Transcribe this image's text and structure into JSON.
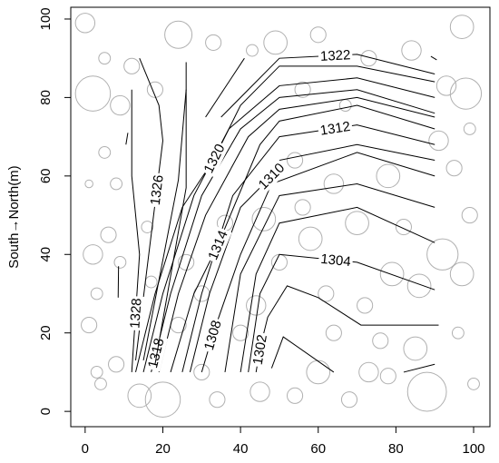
{
  "chart_data": {
    "type": "contour",
    "y_label": "South→North(m)",
    "xlim": [
      -3.7,
      104.2
    ],
    "ylim": [
      -3.9,
      103
    ],
    "xticks": [
      0,
      20,
      40,
      60,
      80,
      100
    ],
    "yticks": [
      0,
      20,
      40,
      60,
      80,
      100
    ],
    "line_color": "#000000",
    "circle_color": "#b0b0b0",
    "trees": {
      "x": [
        0,
        12,
        24,
        33,
        49,
        60,
        73,
        84,
        97,
        93,
        98,
        5,
        2,
        1,
        6,
        2,
        3,
        9,
        1,
        3,
        8,
        4,
        14,
        20,
        30,
        34,
        45,
        54,
        60,
        73,
        68,
        78,
        88,
        100,
        96,
        85,
        86,
        97,
        99,
        95,
        99,
        91,
        78,
        82,
        70,
        64,
        54,
        56,
        62,
        58,
        72,
        76,
        46,
        50,
        36,
        30,
        24,
        17,
        8,
        5,
        16,
        26,
        40,
        44,
        64,
        79,
        92,
        56,
        67,
        43,
        18,
        9
      ],
      "y": [
        99,
        88,
        96,
        94,
        94,
        96,
        90,
        92,
        98,
        83,
        81,
        90,
        81,
        58,
        45,
        40,
        30,
        38,
        22,
        10,
        12,
        7,
        4,
        3,
        10,
        3,
        5,
        4,
        10,
        10,
        3,
        9,
        5,
        7,
        20,
        16,
        32,
        35,
        50,
        62,
        72,
        69,
        60,
        47,
        48,
        58,
        64,
        52,
        30,
        44,
        27,
        18,
        49,
        38,
        48,
        30,
        22,
        33,
        58,
        66,
        47,
        38,
        20,
        27,
        20,
        35,
        40,
        82,
        78,
        92,
        82,
        78
      ],
      "size": [
        2.5,
        2,
        3.5,
        2,
        3,
        2,
        2,
        2.5,
        3,
        2.5,
        4,
        1.5,
        4.5,
        1,
        2,
        2.5,
        1.5,
        1.5,
        2,
        1.5,
        2,
        1.5,
        3,
        4.5,
        2,
        2,
        2.5,
        2,
        3,
        2.5,
        2,
        2,
        5,
        1.5,
        1.5,
        3,
        3,
        3,
        2,
        2,
        1.5,
        2.5,
        3,
        2,
        3,
        2.5,
        2,
        2,
        2,
        3,
        2,
        2,
        3,
        2,
        2,
        2,
        2,
        1.5,
        1.5,
        1.5,
        1.5,
        2,
        2,
        2.5,
        2,
        3,
        4,
        2,
        1.5,
        1.5,
        2,
        2.5
      ]
    },
    "contours": [
      {
        "level": null,
        "x": [
          48,
          51,
          64
        ],
        "y": [
          11,
          19,
          10
        ]
      },
      {
        "level": 1302,
        "x": [
          44,
          45,
          47,
          52,
          60,
          71,
          91
        ],
        "y": [
          10,
          16,
          24,
          32,
          29,
          22,
          22
        ]
      },
      {
        "level": 1304,
        "x": [
          42,
          45,
          50,
          70,
          90
        ],
        "y": [
          10,
          30,
          40,
          38,
          31
        ]
      },
      {
        "level": null,
        "x": [
          40,
          44,
          50,
          70,
          90
        ],
        "y": [
          10,
          35,
          48,
          52,
          43
        ]
      },
      {
        "level": null,
        "x": [
          36,
          40,
          50,
          70,
          90
        ],
        "y": [
          10,
          35,
          55,
          58,
          52
        ]
      },
      {
        "level": 1308,
        "x": [
          30,
          33,
          40,
          48,
          70,
          90
        ],
        "y": [
          10,
          20,
          40,
          58,
          66,
          60
        ]
      },
      {
        "level": 1310,
        "x": [
          27,
          32,
          40,
          48,
          50,
          70,
          90
        ],
        "y": [
          10,
          30,
          52,
          60,
          64,
          68,
          64
        ]
      },
      {
        "level": 1312,
        "x": [
          25,
          30,
          38,
          50,
          70,
          90
        ],
        "y": [
          10,
          30,
          55,
          70,
          73,
          68
        ]
      },
      {
        "level": 1314,
        "x": [
          22,
          28,
          34,
          45,
          50,
          70,
          90
        ],
        "y": [
          10,
          30,
          42,
          68,
          74,
          78,
          72
        ]
      },
      {
        "level": null,
        "x": [
          19,
          24,
          31,
          42,
          50,
          70,
          90
        ],
        "y": [
          10,
          30,
          50,
          70,
          77,
          80,
          75
        ]
      },
      {
        "level": 1318,
        "x": [
          17,
          22,
          30,
          40,
          50,
          70,
          90
        ],
        "y": [
          10,
          30,
          55,
          72,
          80,
          82,
          76
        ]
      },
      {
        "level": null,
        "x": [
          15,
          20,
          28,
          37,
          50,
          70,
          90
        ],
        "y": [
          10,
          30,
          55,
          72,
          83,
          85,
          80
        ]
      },
      {
        "level": 1320,
        "x": [
          13,
          18,
          25,
          33,
          40,
          50,
          70,
          90
        ],
        "y": [
          10,
          30,
          52,
          64,
          78,
          88,
          88,
          84
        ]
      },
      {
        "level": 1322,
        "x": [
          35,
          42,
          50,
          70,
          90
        ],
        "y": [
          75,
          82,
          90,
          91,
          86
        ]
      },
      {
        "level": null,
        "x": [
          31,
          41
        ],
        "y": [
          75,
          90
        ]
      },
      {
        "level": 1326,
        "x": [
          13,
          20,
          19,
          14
        ],
        "y": [
          13,
          69,
          78,
          90
        ]
      },
      {
        "level": null,
        "x": [
          15,
          24,
          26
        ],
        "y": [
          13,
          59,
          82
        ]
      },
      {
        "level": null,
        "x": [
          18,
          26,
          26
        ],
        "y": [
          12,
          57,
          89
        ]
      },
      {
        "level": 1328,
        "x": [
          12,
          14,
          12,
          12
        ],
        "y": [
          10,
          40,
          60,
          82
        ]
      },
      {
        "level": null,
        "x": [
          10.5,
          11
        ],
        "y": [
          68,
          71
        ]
      },
      {
        "level": null,
        "x": [
          8.5,
          8.6
        ],
        "y": [
          29,
          37
        ]
      },
      {
        "level": null,
        "x": [
          82,
          90
        ],
        "y": [
          10,
          12
        ]
      },
      {
        "level": null,
        "x": [
          89,
          90.5
        ],
        "y": [
          90.5,
          89.6
        ]
      }
    ]
  }
}
